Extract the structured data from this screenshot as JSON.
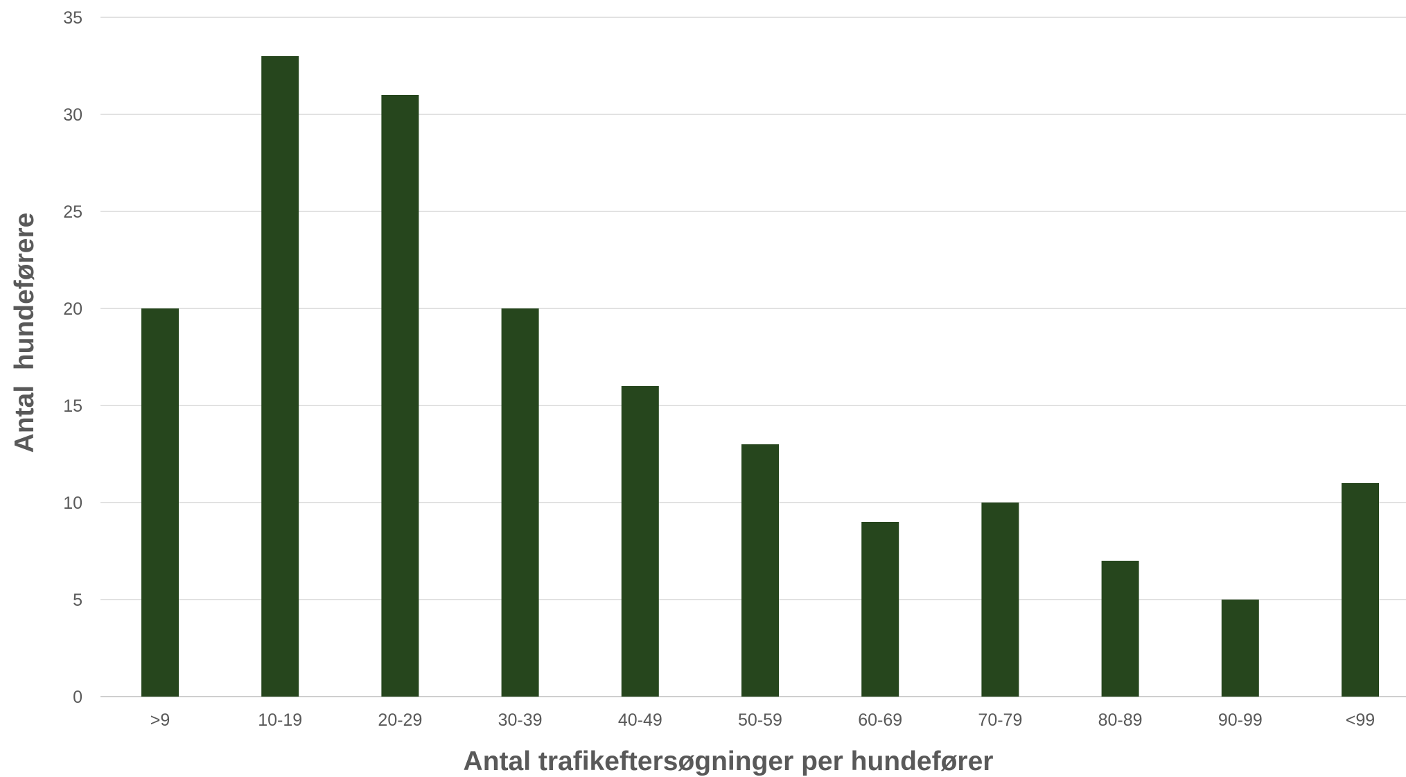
{
  "chart_data": {
    "type": "bar",
    "categories": [
      ">9",
      "10-19",
      "20-29",
      "30-39",
      "40-49",
      "50-59",
      "60-69",
      "70-79",
      "80-89",
      "90-99",
      "<99"
    ],
    "values": [
      20,
      33,
      31,
      20,
      16,
      13,
      9,
      10,
      7,
      5,
      11
    ],
    "xlabel": "Antal trafikeftersøgninger per hundefører",
    "ylabel": "Antal  hundeførere",
    "ylim": [
      0,
      35
    ],
    "yticks": [
      0,
      5,
      10,
      15,
      20,
      25,
      30,
      35
    ],
    "grid": true,
    "legend": "none",
    "bar_color": "#26461d",
    "text_color": "#595959",
    "grid_color": "#d9d9d9"
  }
}
